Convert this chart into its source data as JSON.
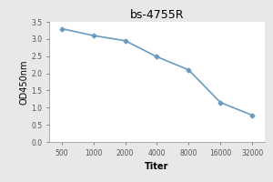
{
  "title": "bs-4755R",
  "xlabel": "Titer",
  "ylabel": "OD450nm",
  "x_values": [
    500,
    1000,
    2000,
    4000,
    8000,
    16000,
    32000
  ],
  "y_values": [
    3.3,
    3.1,
    2.95,
    2.48,
    2.1,
    1.15,
    0.78
  ],
  "x_tick_labels": [
    "500",
    "1000",
    "2000",
    "4000",
    "8000",
    "16000",
    "32000"
  ],
  "ylim": [
    0,
    3.5
  ],
  "yticks": [
    0,
    0.5,
    1.0,
    1.5,
    2.0,
    2.5,
    3.0,
    3.5
  ],
  "line_color": "#6a9bbf",
  "marker": "D",
  "marker_size": 2.5,
  "line_width": 1.2,
  "title_fontsize": 9,
  "axis_label_fontsize": 7,
  "tick_fontsize": 5.5,
  "background_color": "#ffffff",
  "fig_background_color": "#e8e8e8"
}
